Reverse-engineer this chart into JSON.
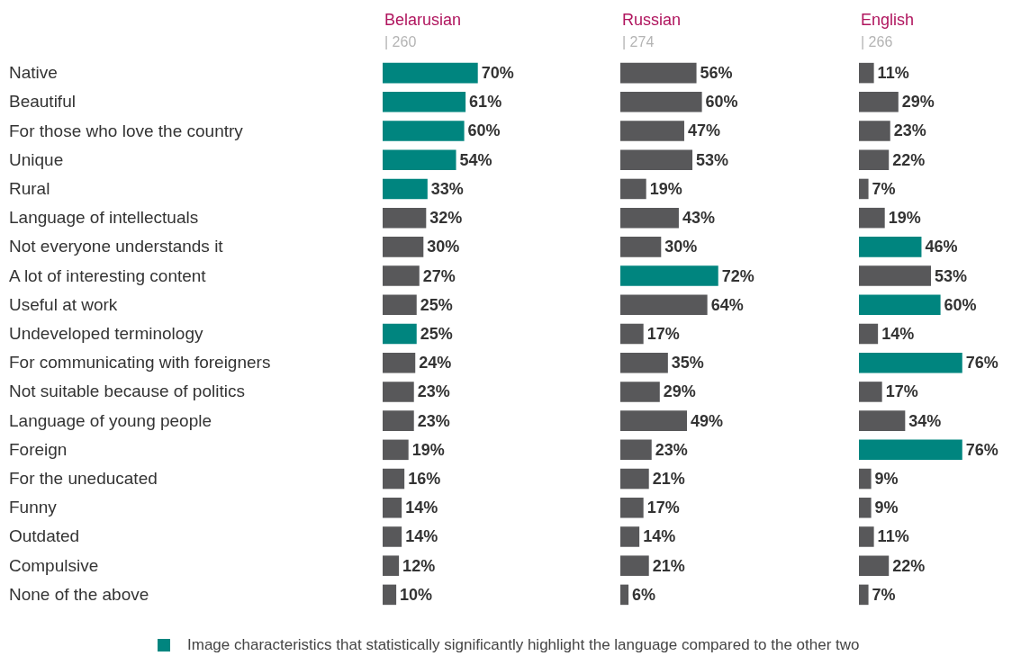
{
  "chart_data": [
    {
      "type": "bar",
      "orientation": "horizontal",
      "title": "Belarusian",
      "subtitle": "| 260",
      "tick_labels": "y",
      "legend": false,
      "categories": [
        "Native",
        "Beautiful",
        "For those who love the country",
        "Unique",
        "Rural",
        "Language of intellectuals",
        "Not everyone understands it",
        "A lot of interesting content",
        "Useful at work",
        "Undeveloped terminology",
        "For communicating with foreigners",
        "Not suitable because of politics",
        "Language of young people",
        "Foreign",
        "For the uneducated",
        "Funny",
        "Outdated",
        "Compulsive",
        "None of the above"
      ],
      "values": [
        70,
        61,
        60,
        54,
        33,
        32,
        30,
        27,
        25,
        25,
        24,
        23,
        23,
        19,
        16,
        14,
        14,
        12,
        10
      ],
      "value_labels": [
        "70%",
        "61%",
        "60%",
        "54%",
        "33%",
        "32%",
        "30%",
        "27%",
        "25%",
        "25%",
        "24%",
        "23%",
        "23%",
        "19%",
        "16%",
        "14%",
        "14%",
        "12%",
        "10%"
      ],
      "colors": [
        "#00857f",
        "#00857f",
        "#00857f",
        "#00857f",
        "#00857f",
        "#58585a",
        "#58585a",
        "#58585a",
        "#58585a",
        "#00857f",
        "#58585a",
        "#58585a",
        "#58585a",
        "#58585a",
        "#58585a",
        "#58585a",
        "#58585a",
        "#58585a",
        "#58585a"
      ],
      "annotations": [
        "Image characteristics that statistically significantly highlight the language compared to the other two"
      ]
    },
    {
      "type": "bar",
      "orientation": "horizontal",
      "title": "Russian",
      "subtitle": "| 274",
      "tick_labels": false,
      "legend": false,
      "values": [
        56,
        60,
        47,
        53,
        19,
        43,
        30,
        72,
        64,
        17,
        35,
        29,
        49,
        23,
        21,
        17,
        14,
        21,
        6
      ],
      "value_labels": [
        "56%",
        "60%",
        "47%",
        "53%",
        "19%",
        "43%",
        "30%",
        "72%",
        "64%",
        "17%",
        "35%",
        "29%",
        "49%",
        "23%",
        "21%",
        "17%",
        "14%",
        "21%",
        "6%"
      ],
      "colors": [
        "#58585a",
        "#58585a",
        "#58585a",
        "#58585a",
        "#58585a",
        "#58585a",
        "#58585a",
        "#00857f",
        "#58585a",
        "#58585a",
        "#58585a",
        "#58585a",
        "#58585a",
        "#58585a",
        "#58585a",
        "#58585a",
        "#58585a",
        "#58585a",
        "#58585a"
      ]
    },
    {
      "type": "bar",
      "orientation": "horizontal",
      "title": "English",
      "subtitle": "| 266",
      "tick_labels": false,
      "legend": false,
      "values": [
        11,
        29,
        23,
        22,
        7,
        19,
        46,
        53,
        60,
        14,
        76,
        17,
        34,
        76,
        9,
        9,
        11,
        22,
        7
      ],
      "value_labels": [
        "11%",
        "29%",
        "23%",
        "22%",
        "7%",
        "19%",
        "46%",
        "53%",
        "60%",
        "14%",
        "76%",
        "17%",
        "34%",
        "76%",
        "9%",
        "9%",
        "11%",
        "22%",
        "7%"
      ],
      "colors": [
        "#58585a",
        "#58585a",
        "#58585a",
        "#58585a",
        "#58585a",
        "#58585a",
        "#00857f",
        "#58585a",
        "#00857f",
        "#58585a",
        "#00857f",
        "#58585a",
        "#58585a",
        "#00857f",
        "#58585a",
        "#58585a",
        "#58585a",
        "#58585a",
        "#58585a"
      ]
    }
  ]
}
